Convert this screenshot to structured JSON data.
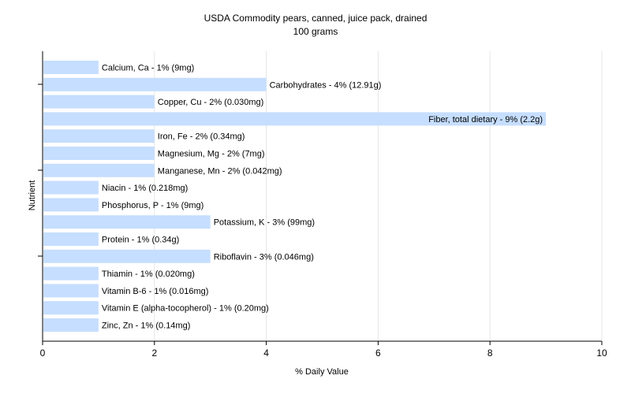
{
  "chart_data": {
    "type": "bar",
    "orientation": "horizontal",
    "title": "USDA Commodity pears, canned, juice pack, drained",
    "subtitle": "100 grams",
    "xlabel": "% Daily Value",
    "ylabel": "Nutrient",
    "xlim": [
      0,
      10
    ],
    "xticks": [
      0,
      2,
      4,
      6,
      8,
      10
    ],
    "grid": true,
    "bar_color": "#c6deff",
    "categories": [
      "Calcium, Ca - 1% (9mg)",
      "Carbohydrates - 4% (12.91g)",
      "Copper, Cu - 2% (0.030mg)",
      "Fiber, total dietary - 9% (2.2g)",
      "Iron, Fe - 2% (0.34mg)",
      "Magnesium, Mg - 2% (7mg)",
      "Manganese, Mn - 2% (0.042mg)",
      "Niacin - 1% (0.218mg)",
      "Phosphorus, P - 1% (9mg)",
      "Potassium, K - 3% (99mg)",
      "Protein - 1% (0.34g)",
      "Riboflavin - 3% (0.046mg)",
      "Thiamin - 1% (0.020mg)",
      "Vitamin B-6 - 1% (0.016mg)",
      "Vitamin E (alpha-tocopherol) - 1% (0.20mg)",
      "Zinc, Zn - 1% (0.14mg)"
    ],
    "values": [
      1,
      4,
      2,
      9,
      2,
      2,
      2,
      1,
      1,
      3,
      1,
      3,
      1,
      1,
      1,
      1
    ]
  }
}
